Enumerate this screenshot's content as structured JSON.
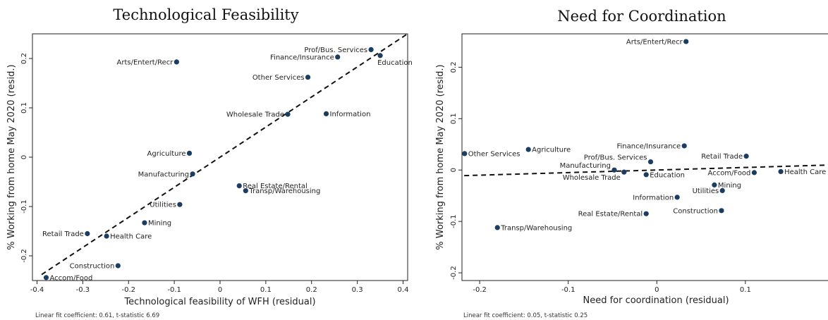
{
  "chart_data": [
    {
      "type": "scatter",
      "title": "Technological Feasibility",
      "xlabel": "Technological feasibility of WFH (residual)",
      "ylabel": "% Working from home May 2020 (resid.)",
      "note": "Linear fit coefficient: 0.61, t-statistic 6.69",
      "xlim": [
        -0.41,
        0.41
      ],
      "ylim": [
        -0.25,
        0.25
      ],
      "xticks": [
        "-0.4",
        "-0.3",
        "-0.2",
        "-0.1",
        "0",
        "0.1",
        "0.2",
        "0.3",
        "0.4"
      ],
      "yticks": [
        "-0.2",
        "-0.1",
        "0",
        "0.1",
        "0.2"
      ],
      "fit_line": {
        "slope": 0.61,
        "intercept": 0.0
      },
      "points": [
        {
          "label": "Arts/Entert/Recr",
          "x": -0.095,
          "y": 0.193,
          "side": "left"
        },
        {
          "label": "Prof/Bus. Services",
          "x": 0.33,
          "y": 0.218,
          "side": "left"
        },
        {
          "label": "Finance/Insurance",
          "x": 0.257,
          "y": 0.203,
          "side": "left"
        },
        {
          "label": "Education",
          "x": 0.35,
          "y": 0.206,
          "side": "below"
        },
        {
          "label": "Other Services",
          "x": 0.192,
          "y": 0.162,
          "side": "left"
        },
        {
          "label": "Wholesale Trade",
          "x": 0.148,
          "y": 0.087,
          "side": "left"
        },
        {
          "label": "Information",
          "x": 0.232,
          "y": 0.088,
          "side": "right"
        },
        {
          "label": "Agriculture",
          "x": -0.067,
          "y": 0.008,
          "side": "left"
        },
        {
          "label": "Manufacturing",
          "x": -0.06,
          "y": -0.034,
          "side": "left"
        },
        {
          "label": "Real Estate/Rental",
          "x": 0.042,
          "y": -0.058,
          "side": "right"
        },
        {
          "label": "Transp/Warehousing",
          "x": 0.056,
          "y": -0.068,
          "side": "right"
        },
        {
          "label": "Utilities",
          "x": -0.088,
          "y": -0.096,
          "side": "left"
        },
        {
          "label": "Mining",
          "x": -0.165,
          "y": -0.133,
          "side": "right"
        },
        {
          "label": "Retail Trade",
          "x": -0.29,
          "y": -0.155,
          "side": "left"
        },
        {
          "label": "Health Care",
          "x": -0.248,
          "y": -0.16,
          "side": "right"
        },
        {
          "label": "Construction",
          "x": -0.223,
          "y": -0.22,
          "side": "left"
        },
        {
          "label": "Accom/Food",
          "x": -0.38,
          "y": -0.244,
          "side": "right"
        }
      ]
    },
    {
      "type": "scatter",
      "title": "Need for Coordination",
      "xlabel": "Need for coordination (residual)",
      "ylabel": "% Working from home May 2020 (resid.)",
      "note": "Linear fit coefficient: 0.05, t-statistic 0.25",
      "xlim": [
        -0.22,
        0.21
      ],
      "ylim": [
        -0.215,
        0.265
      ],
      "xticks": [
        "-0.2",
        "-0.1",
        "0",
        "0.1",
        "0.2"
      ],
      "yticks": [
        "-0.2",
        "-0.1",
        "0",
        "0.1",
        "0.2"
      ],
      "fit_line": {
        "slope": 0.05,
        "intercept": 0.0
      },
      "points": [
        {
          "label": "Arts/Entert/Recr",
          "x": 0.033,
          "y": 0.25,
          "side": "left"
        },
        {
          "label": "Other Services",
          "x": -0.217,
          "y": 0.032,
          "side": "right"
        },
        {
          "label": "Agriculture",
          "x": -0.145,
          "y": 0.04,
          "side": "right"
        },
        {
          "label": "Finance/Insurance",
          "x": 0.031,
          "y": 0.047,
          "side": "left"
        },
        {
          "label": "Prof/Bus. Services",
          "x": -0.007,
          "y": 0.016,
          "side": "leftup"
        },
        {
          "label": "Retail Trade",
          "x": 0.101,
          "y": 0.027,
          "side": "left"
        },
        {
          "label": "Manufacturing",
          "x": -0.048,
          "y": 0.0,
          "side": "leftup"
        },
        {
          "label": "Wholesale Trade",
          "x": -0.037,
          "y": -0.004,
          "side": "leftdown"
        },
        {
          "label": "Education",
          "x": -0.012,
          "y": -0.009,
          "side": "right"
        },
        {
          "label": "Accom/Food",
          "x": 0.11,
          "y": -0.005,
          "side": "left"
        },
        {
          "label": "Health Care",
          "x": 0.14,
          "y": -0.003,
          "side": "right"
        },
        {
          "label": "Mining",
          "x": 0.065,
          "y": -0.029,
          "side": "right"
        },
        {
          "label": "Utilities",
          "x": 0.074,
          "y": -0.04,
          "side": "left"
        },
        {
          "label": "Information",
          "x": 0.023,
          "y": -0.053,
          "side": "left"
        },
        {
          "label": "Construction",
          "x": 0.073,
          "y": -0.079,
          "side": "left"
        },
        {
          "label": "Real Estate/Rental",
          "x": -0.012,
          "y": -0.085,
          "side": "left"
        },
        {
          "label": "Transp/Warehousing",
          "x": -0.18,
          "y": -0.112,
          "side": "right"
        }
      ]
    }
  ]
}
